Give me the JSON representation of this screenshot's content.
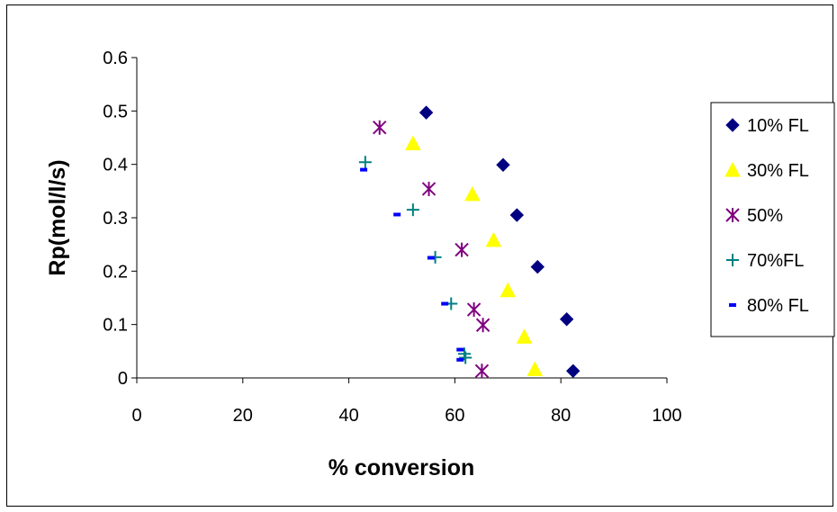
{
  "chart_data": {
    "type": "scatter",
    "xlabel": "% conversion",
    "ylabel": "Rp(mol/l/s)",
    "xlim": [
      0,
      100
    ],
    "ylim": [
      0,
      0.6
    ],
    "xticks": [
      "0",
      "20",
      "40",
      "60",
      "80",
      "100"
    ],
    "yticks": [
      "0",
      "0.1",
      "0.2",
      "0.3",
      "0.4",
      "0.5",
      "0.6"
    ],
    "grid": false,
    "legend_position": "right",
    "series": [
      {
        "name": "10% FL",
        "marker": "diamond",
        "color": "#000080",
        "points": [
          [
            54.6,
            0.497
          ],
          [
            69.1,
            0.399
          ],
          [
            71.7,
            0.305
          ],
          [
            75.6,
            0.208
          ],
          [
            81.1,
            0.11
          ],
          [
            82.3,
            0.013
          ]
        ]
      },
      {
        "name": "30% FL",
        "marker": "triangle",
        "color": "#FFFF00",
        "points": [
          [
            52.1,
            0.439
          ],
          [
            63.3,
            0.344
          ],
          [
            67.3,
            0.258
          ],
          [
            70.0,
            0.164
          ],
          [
            73.1,
            0.077
          ],
          [
            75.1,
            0.016
          ]
        ]
      },
      {
        "name": "50%",
        "marker": "asterisk",
        "color": "#800080",
        "points": [
          [
            45.8,
            0.469
          ],
          [
            55.1,
            0.354
          ],
          [
            61.3,
            0.24
          ],
          [
            63.6,
            0.128
          ],
          [
            65.3,
            0.099
          ],
          [
            65.1,
            0.013
          ]
        ]
      },
      {
        "name": "70%FL",
        "marker": "plus",
        "color": "#008080",
        "points": [
          [
            43.1,
            0.404
          ],
          [
            52.1,
            0.315
          ],
          [
            56.3,
            0.226
          ],
          [
            59.3,
            0.139
          ],
          [
            61.8,
            0.045
          ],
          [
            62.0,
            0.038
          ]
        ]
      },
      {
        "name": "80% FL",
        "marker": "dash",
        "color": "#0000FF",
        "points": [
          [
            42.8,
            0.39
          ],
          [
            49.1,
            0.306
          ],
          [
            55.5,
            0.225
          ],
          [
            58.1,
            0.139
          ],
          [
            61.0,
            0.053
          ],
          [
            61.0,
            0.034
          ]
        ]
      }
    ]
  }
}
